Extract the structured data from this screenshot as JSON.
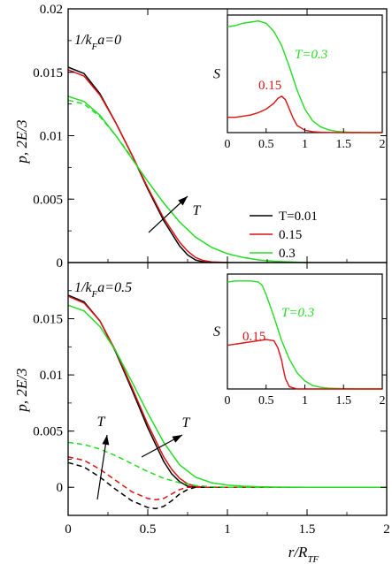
{
  "colors": {
    "T0.01": "#000000",
    "T0.15": "#dd1111",
    "T0.3": "#22dd22"
  },
  "chart_data": [
    {
      "type": "line",
      "panel": "top",
      "label_prefix": "1/k",
      "label_sub": "F",
      "label_suffix": "a=0",
      "xlim": [
        0,
        2
      ],
      "ylim": [
        0,
        0.02
      ],
      "xticks": [
        "0",
        "0.5",
        "1",
        "1.5",
        "2"
      ],
      "yticks": [
        "0",
        "0.005",
        "0.01",
        "0.015",
        "0.02"
      ],
      "ylabel": "p, 2E/3",
      "arrow_label": "T",
      "legend": [
        {
          "name": "T=0.01",
          "color": "#000000"
        },
        {
          "name": "0.15",
          "color": "#dd1111"
        },
        {
          "name": "0.3",
          "color": "#22dd22"
        }
      ],
      "series": [
        {
          "name": "T=0.01",
          "color": "#000000",
          "style": "solid",
          "x": [
            0,
            0.1,
            0.2,
            0.3,
            0.4,
            0.5,
            0.6,
            0.7,
            0.75,
            0.8,
            0.85,
            0.9
          ],
          "y": [
            0.0154,
            0.0149,
            0.0133,
            0.011,
            0.0085,
            0.0058,
            0.0033,
            0.0013,
            0.0006,
            0.0002,
            5e-05,
            0
          ]
        },
        {
          "name": "0.15",
          "color": "#dd1111",
          "style": "solid",
          "x": [
            0,
            0.1,
            0.2,
            0.3,
            0.4,
            0.5,
            0.6,
            0.7,
            0.75,
            0.8,
            0.85,
            0.9,
            1.0
          ],
          "y": [
            0.0152,
            0.0147,
            0.0132,
            0.011,
            0.0085,
            0.0059,
            0.0035,
            0.0016,
            0.0009,
            0.0004,
            0.00015,
            5e-05,
            0
          ]
        },
        {
          "name": "0.3",
          "color": "#22dd22",
          "style": "solid",
          "x": [
            0,
            0.1,
            0.2,
            0.3,
            0.4,
            0.5,
            0.6,
            0.7,
            0.8,
            0.9,
            1.0,
            1.1,
            1.2,
            1.3,
            1.4,
            1.5
          ],
          "y": [
            0.0131,
            0.0127,
            0.0116,
            0.01,
            0.0082,
            0.0064,
            0.0047,
            0.0032,
            0.002,
            0.0012,
            0.0007,
            0.0004,
            0.0002,
            0.0001,
            4e-05,
            0
          ]
        },
        {
          "name": "0.3 (2E/3)",
          "color": "#22dd22",
          "style": "dashed",
          "x": [
            0,
            0.1,
            0.2,
            0.3,
            0.4
          ],
          "y": [
            0.0128,
            0.0125,
            0.0115,
            0.01,
            0.0083
          ]
        }
      ],
      "inset": {
        "ylabel": "S",
        "xlim": [
          0,
          2
        ],
        "ylim": [
          0,
          1
        ],
        "xticks": [
          "0",
          "0.5",
          "1",
          "1.5",
          "2"
        ],
        "labels": [
          {
            "text": "T=0.3",
            "color": "#22dd22",
            "italic": true
          },
          {
            "text": "0.15",
            "color": "#dd1111",
            "italic": false
          }
        ],
        "series": [
          {
            "name": "T=0.3",
            "color": "#22dd22",
            "x": [
              0,
              0.1,
              0.2,
              0.3,
              0.4,
              0.5,
              0.6,
              0.7,
              0.8,
              0.9,
              1.0,
              1.1,
              1.2,
              1.3,
              1.4,
              1.5,
              1.6,
              1.8,
              2.0
            ],
            "y": [
              0.9,
              0.91,
              0.93,
              0.94,
              0.95,
              0.93,
              0.86,
              0.74,
              0.56,
              0.36,
              0.2,
              0.1,
              0.05,
              0.025,
              0.012,
              0.006,
              0.003,
              0.001,
              0
            ]
          },
          {
            "name": "0.15",
            "color": "#dd1111",
            "x": [
              0,
              0.1,
              0.2,
              0.3,
              0.4,
              0.5,
              0.6,
              0.65,
              0.7,
              0.75,
              0.8,
              0.85,
              0.9,
              1.0,
              1.1,
              1.2,
              1.4,
              1.6,
              1.8,
              2.0
            ],
            "y": [
              0.13,
              0.13,
              0.14,
              0.15,
              0.17,
              0.2,
              0.25,
              0.29,
              0.31,
              0.28,
              0.2,
              0.12,
              0.06,
              0.02,
              0.008,
              0.003,
              0.001,
              0,
              0,
              0
            ]
          }
        ]
      }
    },
    {
      "type": "line",
      "panel": "bottom",
      "label_prefix": "1/k",
      "label_sub": "F",
      "label_suffix": "a=0.5",
      "xlim": [
        0,
        2
      ],
      "ylim": [
        -0.0025,
        0.02
      ],
      "xticks": [
        "0",
        "0.5",
        "1",
        "1.5",
        "2"
      ],
      "yticks": [
        "0",
        "0.005",
        "0.01",
        "0.015"
      ],
      "ylabel": "p, 2E/3",
      "xlabel_main": "r/R",
      "xlabel_sub": "TF",
      "arrow_label": "T",
      "series": [
        {
          "name": "T=0.01",
          "color": "#000000",
          "style": "solid",
          "x": [
            0,
            0.1,
            0.2,
            0.3,
            0.4,
            0.5,
            0.6,
            0.65,
            0.7,
            0.75,
            0.8,
            0.85,
            0.9,
            1.0,
            1.5,
            2.0
          ],
          "y": [
            0.0171,
            0.0165,
            0.0148,
            0.012,
            0.0087,
            0.0053,
            0.0023,
            0.0012,
            0.0005,
            0.0001,
            0,
            0,
            0,
            0,
            0,
            0
          ]
        },
        {
          "name": "0.15",
          "color": "#dd1111",
          "style": "solid",
          "x": [
            0,
            0.1,
            0.2,
            0.3,
            0.4,
            0.5,
            0.6,
            0.65,
            0.7,
            0.75,
            0.8,
            0.85,
            0.9,
            1.0,
            1.5,
            2.0
          ],
          "y": [
            0.017,
            0.0164,
            0.0148,
            0.0121,
            0.0089,
            0.0056,
            0.0027,
            0.0016,
            0.0008,
            0.0003,
            0.0001,
            0,
            0,
            0,
            0,
            0
          ]
        },
        {
          "name": "0.3",
          "color": "#22dd22",
          "style": "solid",
          "x": [
            0,
            0.1,
            0.2,
            0.3,
            0.4,
            0.5,
            0.6,
            0.7,
            0.8,
            0.9,
            1.0,
            1.1,
            1.2,
            1.3,
            1.5,
            2.0
          ],
          "y": [
            0.0162,
            0.0157,
            0.0143,
            0.0121,
            0.0094,
            0.0066,
            0.004,
            0.002,
            0.0009,
            0.0004,
            0.0002,
            0.0001,
            5e-05,
            2e-05,
            0,
            0
          ]
        },
        {
          "name": "T=0.01 (2E/3)",
          "color": "#000000",
          "style": "dashed",
          "x": [
            0,
            0.1,
            0.2,
            0.3,
            0.4,
            0.5,
            0.55,
            0.6,
            0.65,
            0.7,
            0.75,
            0.8,
            0.85,
            0.9,
            1.0
          ],
          "y": [
            0.0022,
            0.0018,
            0.0009,
            -0.0002,
            -0.0012,
            -0.0018,
            -0.0019,
            -0.0017,
            -0.0012,
            -0.0006,
            -0.0002,
            0,
            0,
            0,
            0
          ]
        },
        {
          "name": "0.15 (2E/3)",
          "color": "#dd1111",
          "style": "dashed",
          "x": [
            0,
            0.1,
            0.2,
            0.3,
            0.4,
            0.5,
            0.55,
            0.6,
            0.65,
            0.7,
            0.75,
            0.8,
            0.85,
            0.9,
            1.0
          ],
          "y": [
            0.0027,
            0.0024,
            0.0016,
            0.0006,
            -0.0004,
            -0.001,
            -0.0011,
            -0.001,
            -0.0006,
            -0.0002,
            0,
            0,
            0,
            0,
            0
          ]
        },
        {
          "name": "0.3 (2E/3)",
          "color": "#22dd22",
          "style": "dashed",
          "x": [
            0,
            0.1,
            0.2,
            0.3,
            0.4,
            0.5,
            0.6,
            0.7,
            0.8,
            0.9,
            1.0,
            1.2,
            1.5
          ],
          "y": [
            0.004,
            0.0038,
            0.0034,
            0.0028,
            0.0021,
            0.0014,
            0.0008,
            0.0004,
            0.00015,
            5e-05,
            0,
            0,
            0
          ]
        }
      ],
      "inset": {
        "ylabel": "S",
        "xlim": [
          0,
          2
        ],
        "ylim": [
          0,
          1
        ],
        "xticks": [
          "0",
          "0.5",
          "1",
          "1.5",
          "2"
        ],
        "labels": [
          {
            "text": "T=0.3",
            "color": "#22dd22",
            "italic": true
          },
          {
            "text": "0.15",
            "color": "#dd1111",
            "italic": false
          }
        ],
        "series": [
          {
            "name": "T=0.3",
            "color": "#22dd22",
            "x": [
              0,
              0.1,
              0.2,
              0.3,
              0.4,
              0.45,
              0.5,
              0.6,
              0.7,
              0.8,
              0.9,
              1.0,
              1.1,
              1.2,
              1.3,
              1.5,
              1.7,
              2.0
            ],
            "y": [
              0.93,
              0.94,
              0.94,
              0.94,
              0.93,
              0.9,
              0.82,
              0.63,
              0.42,
              0.26,
              0.14,
              0.07,
              0.03,
              0.015,
              0.007,
              0.002,
              0,
              0
            ]
          },
          {
            "name": "0.15",
            "color": "#dd1111",
            "x": [
              0,
              0.1,
              0.2,
              0.3,
              0.4,
              0.5,
              0.6,
              0.65,
              0.7,
              0.72,
              0.75,
              0.8,
              0.9,
              1.0,
              1.5,
              2.0
            ],
            "y": [
              0.38,
              0.39,
              0.4,
              0.41,
              0.42,
              0.43,
              0.42,
              0.36,
              0.25,
              0.18,
              0.09,
              0.02,
              0,
              0,
              0,
              0
            ]
          }
        ]
      }
    }
  ]
}
